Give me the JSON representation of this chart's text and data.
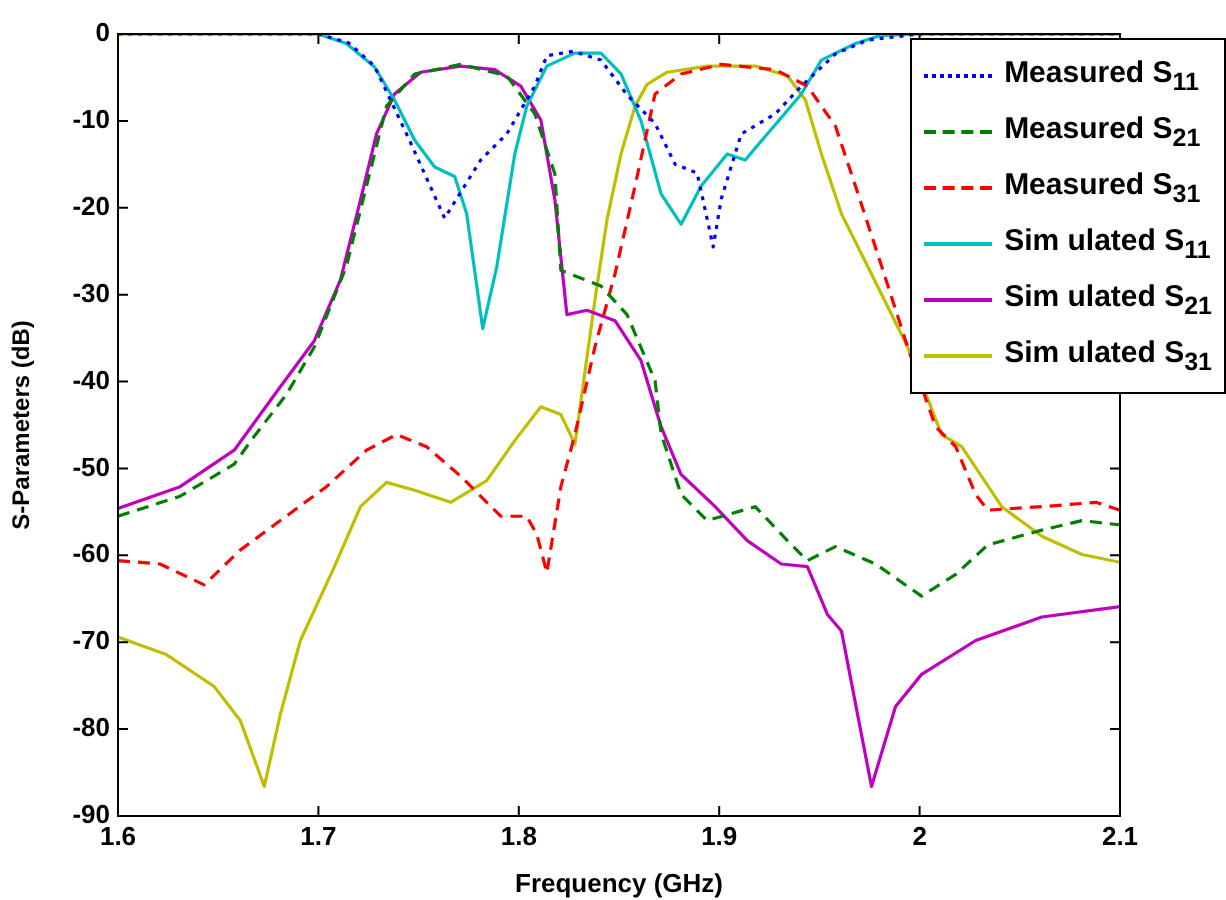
{
  "chart_data": {
    "type": "line",
    "xlabel": "Frequency (GHz)",
    "ylabel": "S-Parameters (dB)",
    "xlim": [
      1.6,
      2.1
    ],
    "xticks": [
      1.6,
      1.7,
      1.8,
      1.9,
      2,
      2.1
    ],
    "ylim": [
      -90,
      0
    ],
    "yticks": [
      -90,
      -80,
      -70,
      -60,
      -50,
      -40,
      -30,
      -20,
      -10,
      0
    ],
    "grid": false,
    "legend": "top right",
    "marker": "none",
    "series": [
      {
        "name": "Measured S$_{11}$",
        "color": "#0000ff",
        "line_style": "dotted",
        "x": [
          1.6,
          1.7,
          1.715,
          1.728,
          1.745,
          1.763,
          1.781,
          1.794,
          1.808,
          1.814,
          1.827,
          1.841,
          1.854,
          1.868,
          1.878,
          1.889,
          1.897,
          1.901,
          1.911,
          1.928,
          1.941,
          1.958,
          1.974,
          2.0,
          2.1
        ],
        "values": [
          0,
          0,
          -1,
          -3.7,
          -12,
          -21.2,
          -14.5,
          -11.5,
          -6,
          -2.5,
          -2,
          -3,
          -7,
          -10.3,
          -15,
          -16,
          -24.5,
          -19,
          -11.5,
          -9.2,
          -6,
          -2.3,
          -0.7,
          0,
          0
        ]
      },
      {
        "name": "Measured S$_{21}$",
        "color": "#008000",
        "line_style": "dashed",
        "x": [
          1.6,
          1.631,
          1.658,
          1.668,
          1.684,
          1.698,
          1.714,
          1.724,
          1.734,
          1.748,
          1.771,
          1.794,
          1.808,
          1.818,
          1.821,
          1.841,
          1.854,
          1.868,
          1.871,
          1.881,
          1.894,
          1.918,
          1.934,
          1.944,
          1.958,
          1.978,
          2.001,
          2.018,
          2.034,
          2.061,
          2.081,
          2.1
        ],
        "values": [
          -55.5,
          -53.2,
          -49.5,
          -46.3,
          -41.5,
          -36,
          -26.7,
          -17.5,
          -8.3,
          -4.6,
          -3.5,
          -4.8,
          -9.2,
          -16.1,
          -27.2,
          -29,
          -32.3,
          -39.9,
          -46,
          -53,
          -56,
          -54.4,
          -58.3,
          -60.6,
          -59,
          -61,
          -64.7,
          -62.2,
          -58.8,
          -57.1,
          -56,
          -56.5
        ]
      },
      {
        "name": "Measured S$_{31}$",
        "color": "#ff0000",
        "line_style": "dashed",
        "x": [
          1.6,
          1.621,
          1.643,
          1.661,
          1.681,
          1.704,
          1.724,
          1.739,
          1.754,
          1.771,
          1.791,
          1.804,
          1.809,
          1.814,
          1.821,
          1.828,
          1.838,
          1.848,
          1.858,
          1.868,
          1.881,
          1.901,
          1.928,
          1.944,
          1.958,
          1.968,
          1.981,
          1.994,
          2.008,
          2.018,
          2.028,
          2.034,
          2.061,
          2.088,
          2.1
        ],
        "values": [
          -60.6,
          -61,
          -63.4,
          -59.4,
          -56,
          -52.1,
          -47.9,
          -46.1,
          -47.5,
          -50.9,
          -55.5,
          -55.5,
          -57.6,
          -62,
          -52.1,
          -46.1,
          -36,
          -27.6,
          -17.5,
          -6.9,
          -4.6,
          -3.5,
          -4.1,
          -6,
          -10.6,
          -17.5,
          -26.7,
          -36,
          -45.2,
          -47.5,
          -53,
          -54.8,
          -54.4,
          -53.9,
          -54.8
        ]
      },
      {
        "name": "Sim ulated S$_{11}$",
        "color": "#00bfbf",
        "line_style": "solid",
        "x": [
          1.6,
          1.7,
          1.714,
          1.728,
          1.738,
          1.748,
          1.758,
          1.768,
          1.774,
          1.782,
          1.789,
          1.798,
          1.804,
          1.814,
          1.828,
          1.841,
          1.851,
          1.861,
          1.871,
          1.881,
          1.891,
          1.904,
          1.913,
          1.924,
          1.941,
          1.951,
          1.968,
          1.98,
          2.0,
          2.1
        ],
        "values": [
          0,
          0,
          -1.1,
          -3.8,
          -7.6,
          -12.2,
          -15.3,
          -16.4,
          -20.7,
          -33.9,
          -26.8,
          -13.8,
          -8.3,
          -3.7,
          -2.2,
          -2.2,
          -4.6,
          -10,
          -18.4,
          -21.9,
          -17.5,
          -13.8,
          -14.5,
          -11.5,
          -6.9,
          -3,
          -1.1,
          -0.2,
          0,
          0
        ]
      },
      {
        "name": "Sim ulated S$_{21}$",
        "color": "#bf00bf",
        "line_style": "solid",
        "x": [
          1.6,
          1.631,
          1.658,
          1.681,
          1.698,
          1.711,
          1.721,
          1.729,
          1.738,
          1.751,
          1.771,
          1.788,
          1.801,
          1.811,
          1.818,
          1.824,
          1.834,
          1.848,
          1.861,
          1.871,
          1.881,
          1.898,
          1.914,
          1.931,
          1.944,
          1.954,
          1.961,
          1.976,
          1.988,
          2.001,
          2.028,
          2.061,
          2.1
        ],
        "values": [
          -54.6,
          -52.1,
          -47.9,
          -40.6,
          -35.3,
          -28.3,
          -19.1,
          -11.5,
          -6.9,
          -4.4,
          -3.7,
          -4.1,
          -6,
          -9.9,
          -19.1,
          -32.3,
          -31.8,
          -33,
          -37.6,
          -45.2,
          -50.7,
          -54.4,
          -58.3,
          -61,
          -61.3,
          -66.8,
          -68.7,
          -86.6,
          -77.4,
          -73.7,
          -69.8,
          -67.1,
          -65.9
        ]
      },
      {
        "name": "Sim ulated S$_{31}$",
        "color": "#bfbf00",
        "line_style": "solid",
        "x": [
          1.6,
          1.624,
          1.648,
          1.661,
          1.673,
          1.681,
          1.691,
          1.708,
          1.721,
          1.734,
          1.748,
          1.766,
          1.784,
          1.798,
          1.811,
          1.821,
          1.828,
          1.838,
          1.844,
          1.851,
          1.858,
          1.864,
          1.874,
          1.894,
          1.918,
          1.934,
          1.943,
          1.951,
          1.961,
          1.974,
          1.994,
          2.011,
          2.021,
          2.041,
          2.061,
          2.081,
          2.1
        ],
        "values": [
          -69.4,
          -71.4,
          -75.1,
          -79,
          -86.6,
          -78.3,
          -69.8,
          -61.3,
          -54.4,
          -51.6,
          -52.5,
          -53.9,
          -51.4,
          -46.8,
          -42.9,
          -43.8,
          -47.2,
          -30.6,
          -21.4,
          -13.8,
          -8.3,
          -5.8,
          -4.4,
          -3.7,
          -3.7,
          -4.8,
          -7.6,
          -13.8,
          -20.7,
          -26.7,
          -36,
          -46.1,
          -47.5,
          -54.4,
          -57.8,
          -59.9,
          -60.8
        ]
      }
    ]
  }
}
